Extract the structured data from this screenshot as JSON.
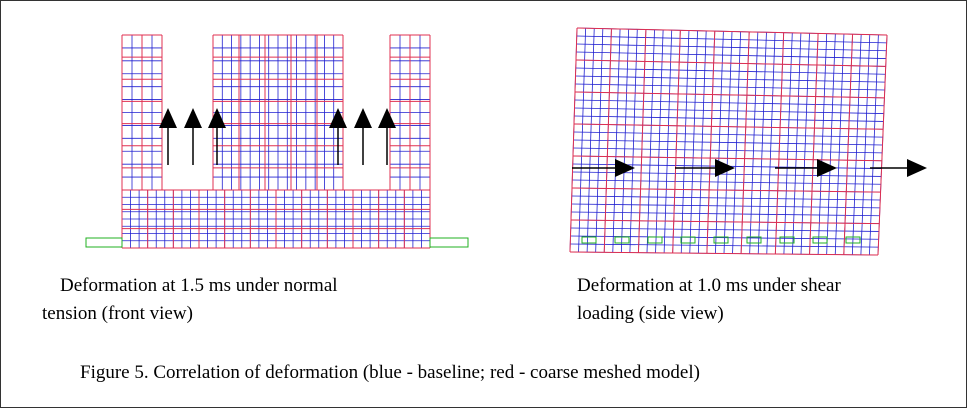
{
  "left_caption": [
    "Deformation at 1.5 ms under normal",
    "tension (front view)"
  ],
  "right_caption": [
    "Deformation at 1.0 ms under shear",
    "loading (side view)"
  ],
  "figure_caption": "Figure 5. Correlation of deformation (blue - baseline; red - coarse meshed model)"
}
